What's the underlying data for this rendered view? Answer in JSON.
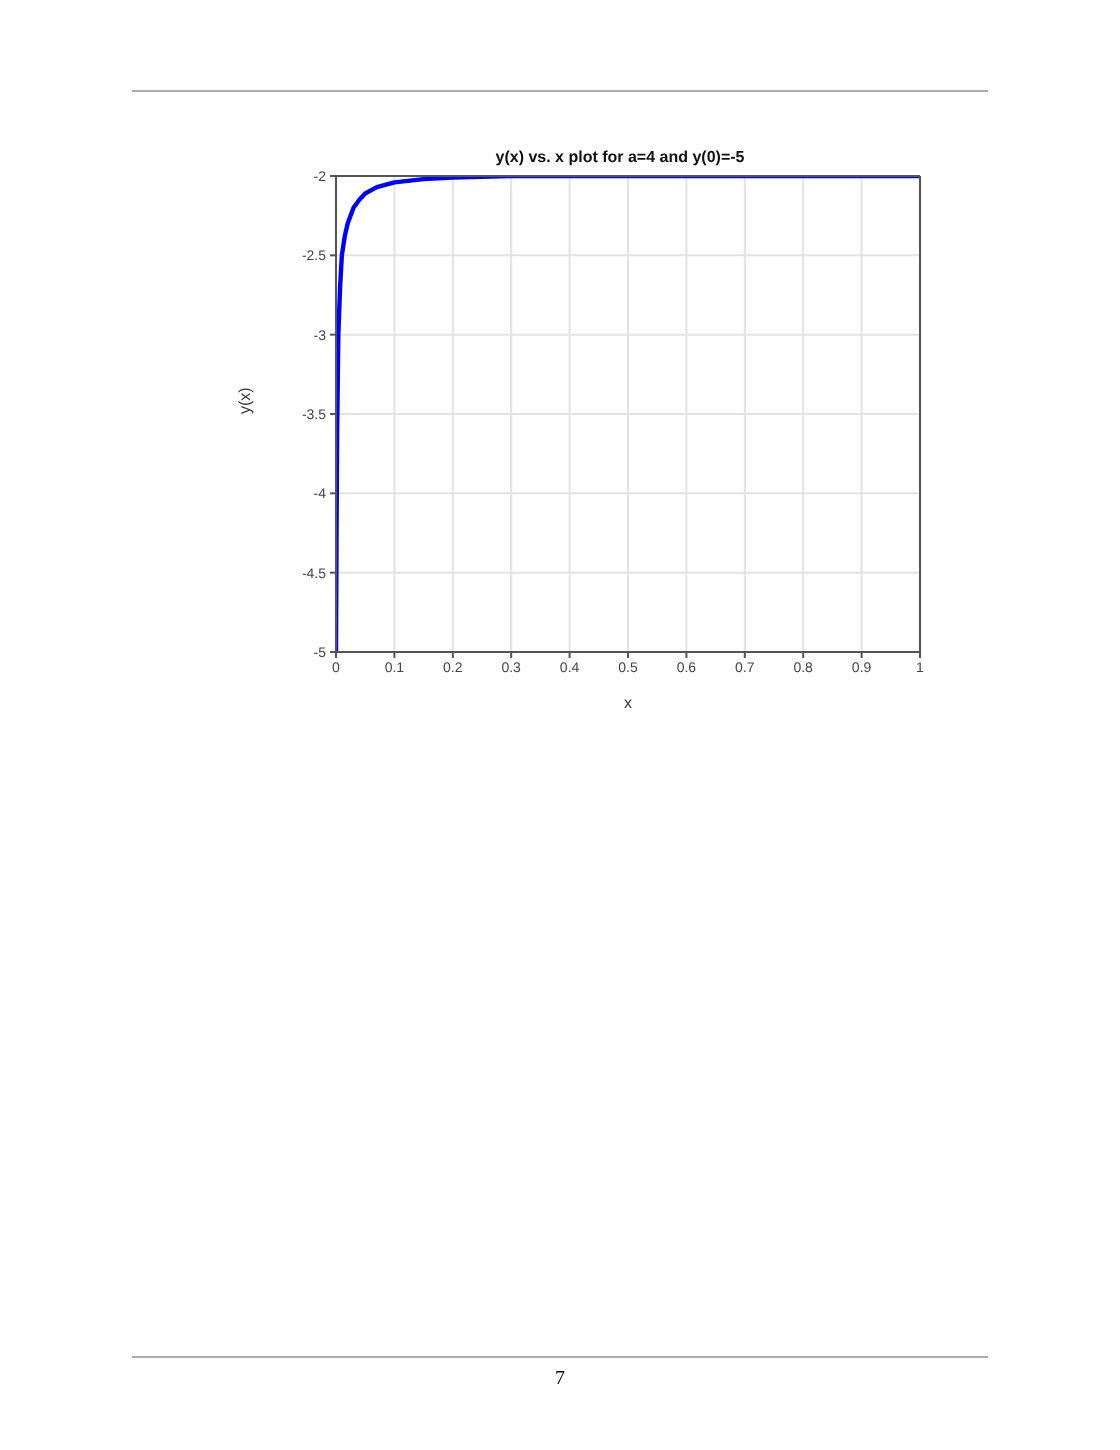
{
  "chart_data": {
    "type": "line",
    "title": "y(x) vs. x plot for a=4 and y(0)=-5",
    "xlabel": "x",
    "ylabel": "y(x)",
    "x": [
      0,
      0.001,
      0.002,
      0.004,
      0.007,
      0.01,
      0.015,
      0.02,
      0.03,
      0.04,
      0.05,
      0.07,
      0.1,
      0.15,
      0.2,
      0.3,
      0.5,
      1
    ],
    "series": [
      {
        "color": "#0000ff",
        "values": [
          -5,
          -4.2,
          -3.6,
          -3.0,
          -2.7,
          -2.5,
          -2.38,
          -2.3,
          -2.2,
          -2.15,
          -2.11,
          -2.07,
          -2.04,
          -2.02,
          -2.01,
          -2,
          -2,
          -2
        ]
      }
    ],
    "xlim": [
      0,
      1
    ],
    "xticks": [
      0,
      0.1,
      0.2,
      0.3,
      0.4,
      0.5,
      0.6,
      0.7,
      0.8,
      0.9,
      1
    ],
    "ylim": [
      -5,
      -2
    ],
    "yticks": [
      -5,
      -4.5,
      -4,
      -3.5,
      -3,
      -2.5,
      -2
    ],
    "grid": true,
    "marker": "none",
    "line_style": "solid",
    "annotations": [
      "7"
    ]
  }
}
